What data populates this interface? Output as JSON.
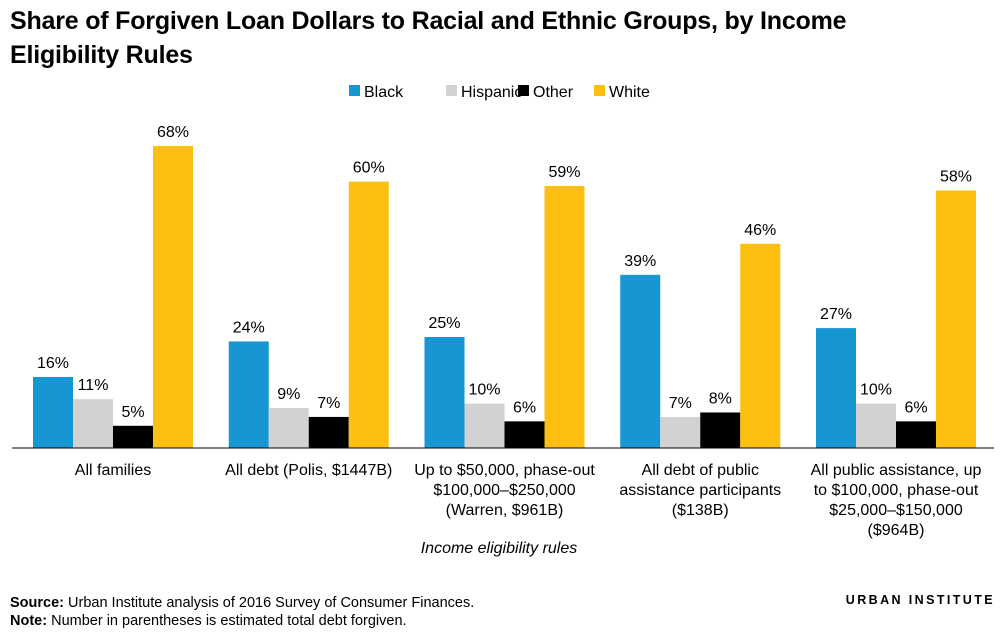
{
  "title": "Share of Forgiven Loan Dollars to Racial and Ethnic Groups, by Income Eligibility Rules",
  "colors": {
    "Black": "#1696d2",
    "Hispanic": "#d2d2d2",
    "Other": "#000000",
    "White": "#fdbf11"
  },
  "chart_data": {
    "type": "bar",
    "categories": [
      "All families",
      "All debt (Polis, $1447B)",
      "Up to $50,000, phase-out $100,000–$250,000 (Warren, $961B)",
      "All debt of public assistance participants ($138B)",
      "All public assistance, up to $100,000, phase-out $25,000–$150,000 ($964B)"
    ],
    "category_lines": [
      [
        "All families"
      ],
      [
        "All debt (Polis, $1447B)"
      ],
      [
        "Up to $50,000, phase-out",
        "$100,000–$250,000",
        "(Warren, $961B)"
      ],
      [
        "All debt of public",
        "assistance participants",
        "($138B)"
      ],
      [
        "All public assistance, up",
        "to $100,000, phase-out",
        "$25,000–$150,000",
        "($964B)"
      ]
    ],
    "series": [
      {
        "name": "Black",
        "values": [
          16,
          24,
          25,
          39,
          27
        ]
      },
      {
        "name": "Hispanic",
        "values": [
          11,
          9,
          10,
          7,
          10
        ]
      },
      {
        "name": "Other",
        "values": [
          5,
          7,
          6,
          8,
          6
        ]
      },
      {
        "name": "White",
        "values": [
          68,
          60,
          59,
          46,
          58
        ]
      }
    ],
    "value_suffix": "%",
    "xlabel": "Income eligibility rules",
    "ylabel": "",
    "ylim": [
      0,
      70
    ],
    "grid": false,
    "legend_position": "top-center"
  },
  "source_label": "Source:",
  "source_text": " Urban Institute analysis of 2016 Survey of Consumer Finances.",
  "note_label": "Note:",
  "note_text": " Number in parentheses is estimated total debt forgiven.",
  "brand": "URBAN INSTITUTE"
}
